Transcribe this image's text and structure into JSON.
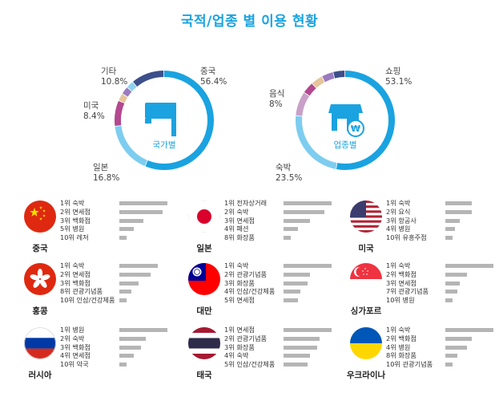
{
  "title": "국적/업종 별 이용 현황",
  "chart_data": [
    {
      "type": "pie",
      "center_label": "국가별",
      "labels": [
        "중국",
        "일본",
        "미국",
        "기타"
      ],
      "values": [
        56.4,
        16.8,
        8.4,
        10.8
      ],
      "value_labels": [
        "56.4%",
        "16.8%",
        "8.4%",
        "10.8%"
      ],
      "colors": {
        "중국": "#1aa3e0",
        "일본": "#7dcdf0",
        "미국": "#b3488f",
        "기타": "#3d4f8a"
      }
    },
    {
      "type": "pie",
      "center_label": "업종별",
      "labels": [
        "쇼핑",
        "숙박",
        "음식"
      ],
      "values": [
        53.1,
        23.5,
        8
      ],
      "value_labels": [
        "53.1%",
        "23.5%",
        "8%"
      ],
      "colors": {
        "쇼핑": "#1aa3e0",
        "숙박": "#7dcdf0",
        "음식": "#c9a0c8"
      }
    },
    {
      "type": "bar",
      "panels": [
        {
          "country": "중국",
          "flag": "china",
          "items": [
            {
              "rank": "1위 숙박",
              "value": 1.0
            },
            {
              "rank": "2위 면세점",
              "value": 0.9
            },
            {
              "rank": "3위 백화점",
              "value": 0.5
            },
            {
              "rank": "5위 병원",
              "value": 0.3
            },
            {
              "rank": "10위 레저",
              "value": 0.15
            }
          ]
        },
        {
          "country": "일본",
          "flag": "japan",
          "items": [
            {
              "rank": "1위 전자상거래",
              "value": 1.0
            },
            {
              "rank": "2위 숙박",
              "value": 0.85
            },
            {
              "rank": "3위 면세점",
              "value": 0.55
            },
            {
              "rank": "4위 패션",
              "value": 0.3
            },
            {
              "rank": "8위 화장품",
              "value": 0.15
            }
          ]
        },
        {
          "country": "미국",
          "flag": "usa",
          "items": [
            {
              "rank": "1위 숙박",
              "value": 0.55
            },
            {
              "rank": "2위 요식",
              "value": 0.55
            },
            {
              "rank": "3위 항공사",
              "value": 0.3
            },
            {
              "rank": "4위 병원",
              "value": 0.2
            },
            {
              "rank": "10위 유흥주점",
              "value": 0.15
            }
          ]
        },
        {
          "country": "홍콩",
          "flag": "hongkong",
          "items": [
            {
              "rank": "1위 숙박",
              "value": 0.8
            },
            {
              "rank": "2위 면세점",
              "value": 0.65
            },
            {
              "rank": "3위 백화점",
              "value": 0.4
            },
            {
              "rank": "8위 관광기념품",
              "value": 0.25
            },
            {
              "rank": "10위 인삼/건강제품",
              "value": 0.15
            }
          ]
        },
        {
          "country": "대만",
          "flag": "taiwan",
          "items": [
            {
              "rank": "1위 숙박",
              "value": 1.0
            },
            {
              "rank": "2위 관광기념품",
              "value": 0.55
            },
            {
              "rank": "3위 화장품",
              "value": 0.5
            },
            {
              "rank": "4위 인삼/건강제품",
              "value": 0.35
            },
            {
              "rank": "5위 면세점",
              "value": 0.3
            }
          ]
        },
        {
          "country": "싱가포르",
          "flag": "singapore",
          "items": [
            {
              "rank": "1위 숙박",
              "value": 1.0
            },
            {
              "rank": "2위 백화점",
              "value": 0.45
            },
            {
              "rank": "3위 면세점",
              "value": 0.3
            },
            {
              "rank": "7위 관광기념품",
              "value": 0.25
            },
            {
              "rank": "10위 병원",
              "value": 0.15
            }
          ]
        },
        {
          "country": "러시아",
          "flag": "russia",
          "items": [
            {
              "rank": "1위 병원",
              "value": 1.0
            },
            {
              "rank": "2위 숙박",
              "value": 0.55
            },
            {
              "rank": "3위 백화점",
              "value": 0.45
            },
            {
              "rank": "4위 면세점",
              "value": 0.3
            },
            {
              "rank": "10위 약국",
              "value": 0.15
            }
          ]
        },
        {
          "country": "태국",
          "flag": "thailand",
          "items": [
            {
              "rank": "1위 면세점",
              "value": 1.0
            },
            {
              "rank": "2위 관광기념품",
              "value": 0.75
            },
            {
              "rank": "3위 화장품",
              "value": 0.7
            },
            {
              "rank": "4위 숙박",
              "value": 0.55
            },
            {
              "rank": "5위 인삼/건강제품",
              "value": 0.5
            }
          ]
        },
        {
          "country": "우크라이나",
          "flag": "ukraine",
          "items": [
            {
              "rank": "1위 숙박",
              "value": 1.0
            },
            {
              "rank": "2위 백화점",
              "value": 0.55
            },
            {
              "rank": "4위 병원",
              "value": 0.45
            },
            {
              "rank": "8위 화장품",
              "value": 0.25
            },
            {
              "rank": "10위 관광기념품",
              "value": 0.15
            }
          ]
        }
      ]
    }
  ]
}
